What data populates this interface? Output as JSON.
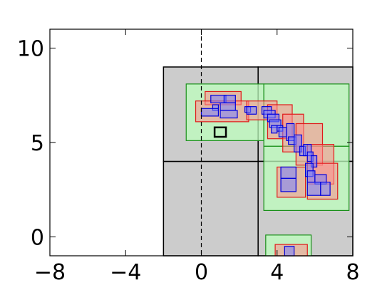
{
  "chart_data": {
    "type": "rectangle_overlay",
    "xlim": [
      -8,
      8
    ],
    "ylim": [
      -1,
      11
    ],
    "grid": false,
    "legend": "none",
    "x_ticks": [
      {
        "value": -8,
        "label": "−8"
      },
      {
        "value": -4,
        "label": "−4"
      },
      {
        "value": 0,
        "label": "0"
      },
      {
        "value": 4,
        "label": "4"
      },
      {
        "value": 8,
        "label": "8"
      }
    ],
    "y_ticks": [
      {
        "value": 0,
        "label": "0"
      },
      {
        "value": 5,
        "label": "5"
      },
      {
        "value": 10,
        "label": "10"
      }
    ],
    "reference_lines": [
      {
        "orientation": "vertical",
        "value": 0,
        "style": "dashed",
        "color": "#000000"
      }
    ],
    "gray_regions": [
      {
        "x0": -2,
        "x1": 3,
        "y0": -1,
        "y1": 4
      },
      {
        "x0": -2,
        "x1": 3,
        "y0": 4,
        "y1": 9
      },
      {
        "x0": 3,
        "x1": 8,
        "y0": 4,
        "y1": 9
      },
      {
        "x0": 3,
        "x1": 8,
        "y0": -1,
        "y1": 4
      }
    ],
    "green_boxes": [
      {
        "x0": -0.8,
        "x1": 3.3,
        "y0": 5.1,
        "y1": 8.1
      },
      {
        "x0": 3.3,
        "x1": 7.8,
        "y0": 4.8,
        "y1": 8.1
      },
      {
        "x0": 3.3,
        "x1": 7.8,
        "y0": 1.4,
        "y1": 4.8
      },
      {
        "x0": 3.4,
        "x1": 5.8,
        "y0": -1,
        "y1": 0.1
      }
    ],
    "red_boxes": [
      {
        "x0": 0.2,
        "x1": 2.1,
        "y0": 7.0,
        "y1": 7.7
      },
      {
        "x0": -0.3,
        "x1": 2.5,
        "y0": 6.1,
        "y1": 7.2
      },
      {
        "x0": 2.4,
        "x1": 4.0,
        "y0": 6.2,
        "y1": 7.2
      },
      {
        "x0": 3.5,
        "x1": 4.8,
        "y0": 5.2,
        "y1": 7.0
      },
      {
        "x0": 4.3,
        "x1": 5.4,
        "y0": 4.5,
        "y1": 6.5
      },
      {
        "x0": 5.0,
        "x1": 6.4,
        "y0": 3.8,
        "y1": 6.0
      },
      {
        "x0": 5.6,
        "x1": 7.0,
        "y0": 2.8,
        "y1": 4.9
      },
      {
        "x0": 5.6,
        "x1": 7.2,
        "y0": 2.0,
        "y1": 3.9
      },
      {
        "x0": 4.0,
        "x1": 5.5,
        "y0": 2.1,
        "y1": 3.7
      },
      {
        "x0": 3.9,
        "x1": 5.6,
        "y0": -1,
        "y1": -0.4
      }
    ],
    "blue_boxes": [
      {
        "x0": 0.5,
        "x1": 1.3,
        "y0": 7.1,
        "y1": 7.5
      },
      {
        "x0": 1.2,
        "x1": 1.8,
        "y0": 7.1,
        "y1": 7.5
      },
      {
        "x0": 0.6,
        "x1": 0.9,
        "y0": 6.7,
        "y1": 7.0
      },
      {
        "x0": 0.0,
        "x1": 0.9,
        "y0": 6.4,
        "y1": 6.8
      },
      {
        "x0": 1.0,
        "x1": 1.8,
        "y0": 6.7,
        "y1": 7.1
      },
      {
        "x0": 1.0,
        "x1": 1.9,
        "y0": 6.3,
        "y1": 6.7
      },
      {
        "x0": 2.3,
        "x1": 2.6,
        "y0": 6.6,
        "y1": 6.9
      },
      {
        "x0": 2.4,
        "x1": 2.9,
        "y0": 6.5,
        "y1": 6.9
      },
      {
        "x0": 3.2,
        "x1": 3.7,
        "y0": 6.5,
        "y1": 6.9
      },
      {
        "x0": 3.3,
        "x1": 3.9,
        "y0": 6.3,
        "y1": 6.7
      },
      {
        "x0": 3.5,
        "x1": 4.1,
        "y0": 6.1,
        "y1": 6.5
      },
      {
        "x0": 3.6,
        "x1": 4.2,
        "y0": 5.8,
        "y1": 6.2
      },
      {
        "x0": 3.7,
        "x1": 4.0,
        "y0": 5.5,
        "y1": 5.9
      },
      {
        "x0": 4.0,
        "x1": 4.3,
        "y0": 5.6,
        "y1": 5.9
      },
      {
        "x0": 4.1,
        "x1": 4.5,
        "y0": 5.3,
        "y1": 5.8
      },
      {
        "x0": 4.5,
        "x1": 4.9,
        "y0": 5.1,
        "y1": 6.0
      },
      {
        "x0": 4.6,
        "x1": 5.0,
        "y0": 4.9,
        "y1": 5.3
      },
      {
        "x0": 4.9,
        "x1": 5.3,
        "y0": 4.5,
        "y1": 5.4
      },
      {
        "x0": 5.2,
        "x1": 5.5,
        "y0": 4.3,
        "y1": 4.8
      },
      {
        "x0": 5.4,
        "x1": 5.8,
        "y0": 4.3,
        "y1": 4.9
      },
      {
        "x0": 5.6,
        "x1": 5.9,
        "y0": 4.0,
        "y1": 4.5
      },
      {
        "x0": 5.8,
        "x1": 6.1,
        "y0": 3.7,
        "y1": 4.3
      },
      {
        "x0": 5.5,
        "x1": 5.9,
        "y0": 3.2,
        "y1": 3.9
      },
      {
        "x0": 5.6,
        "x1": 6.0,
        "y0": 2.9,
        "y1": 3.5
      },
      {
        "x0": 6.0,
        "x1": 6.6,
        "y0": 2.8,
        "y1": 3.3
      },
      {
        "x0": 5.6,
        "x1": 6.3,
        "y0": 2.2,
        "y1": 2.9
      },
      {
        "x0": 6.3,
        "x1": 6.8,
        "y0": 2.2,
        "y1": 2.9
      },
      {
        "x0": 4.2,
        "x1": 5.0,
        "y0": 3.1,
        "y1": 3.7
      },
      {
        "x0": 4.2,
        "x1": 5.0,
        "y0": 2.4,
        "y1": 3.1
      },
      {
        "x0": 4.4,
        "x1": 4.9,
        "y0": -1,
        "y1": -0.5
      }
    ],
    "outline_boxes": [
      {
        "x0": 0.7,
        "x1": 1.3,
        "y0": 5.3,
        "y1": 5.8
      }
    ]
  }
}
